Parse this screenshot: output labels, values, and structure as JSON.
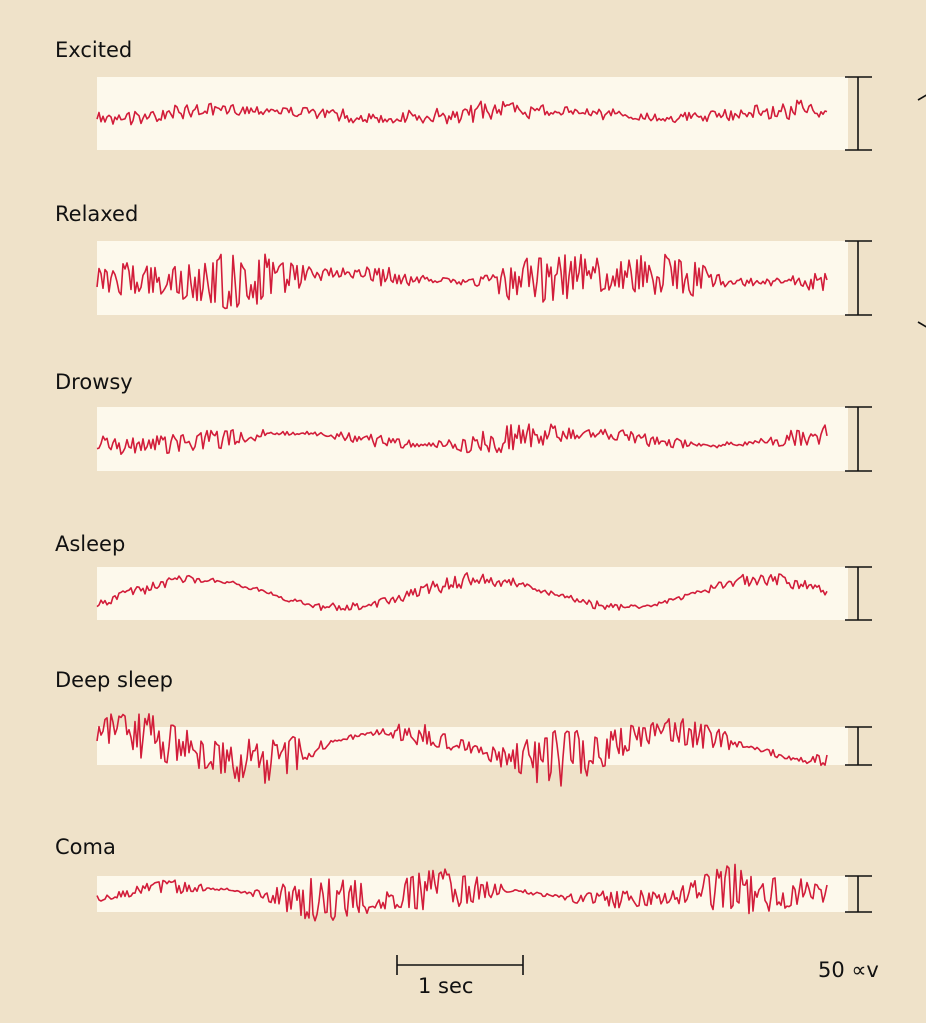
{
  "traces": [
    {
      "label": "Excited"
    },
    {
      "label": "Relaxed"
    },
    {
      "label": "Drowsy"
    },
    {
      "label": "Asleep"
    },
    {
      "label": "Deep sleep"
    },
    {
      "label": "Coma"
    }
  ],
  "time_scale": "1 sec",
  "voltage_scale": "50 ∝v"
}
